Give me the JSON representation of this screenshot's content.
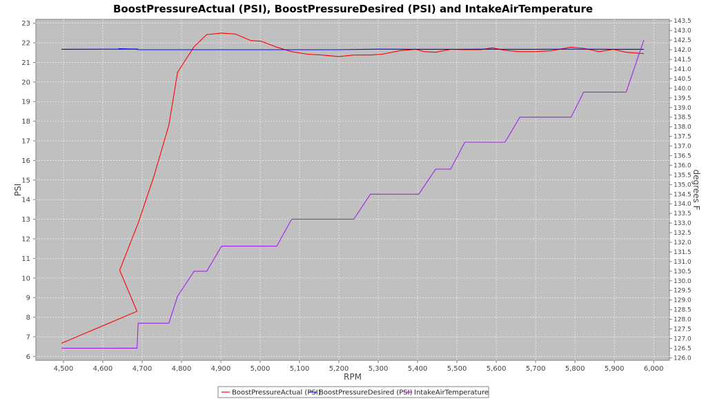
{
  "chart_data": {
    "type": "line",
    "title": "BoostPressureActual (PSI), BoostPressureDesired (PSI) and IntakeAirTemperature",
    "xlabel": "RPM",
    "ylabel": "PSI",
    "y2label": "degrees F",
    "xlim": [
      4430,
      6040
    ],
    "ylim": [
      5.8,
      23.2
    ],
    "y2lim": [
      125.87,
      143.58
    ],
    "x_ticks": [
      "4,500",
      "4,600",
      "4,700",
      "4,800",
      "4,900",
      "5,000",
      "5,100",
      "5,200",
      "5,300",
      "5,400",
      "5,500",
      "5,600",
      "5,700",
      "5,800",
      "5,900",
      "6,000"
    ],
    "y_ticks": [
      "6",
      "7",
      "8",
      "9",
      "10",
      "11",
      "12",
      "13",
      "14",
      "15",
      "16",
      "17",
      "18",
      "19",
      "20",
      "21",
      "22",
      "23"
    ],
    "y2_ticks": [
      "126.0",
      "126.5",
      "127.0",
      "127.5",
      "128.0",
      "128.5",
      "129.0",
      "129.5",
      "130.0",
      "130.5",
      "131.0",
      "131.5",
      "132.0",
      "132.5",
      "133.0",
      "133.5",
      "134.0",
      "134.5",
      "135.0",
      "135.5",
      "136.0",
      "136.5",
      "137.0",
      "137.5",
      "138.0",
      "138.5",
      "139.0",
      "139.5",
      "140.0",
      "140.5",
      "141.0",
      "141.5",
      "142.0",
      "142.5",
      "143.0",
      "143.5"
    ],
    "grid": true,
    "legend_position": "bottom",
    "series": [
      {
        "name": "BoostPressureActual (PSI)",
        "color": "#ff0000",
        "axis": "left",
        "x": [
          4495,
          4687,
          4643,
          4690,
          4730,
          4768,
          4790,
          4832,
          4864,
          4902,
          4937,
          4976,
          5003,
          5042,
          5080,
          5120,
          5157,
          5200,
          5238,
          5280,
          5310,
          5355,
          5395,
          5417,
          5446,
          5484,
          5520,
          5560,
          5590,
          5622,
          5660,
          5700,
          5740,
          5790,
          5822,
          5862,
          5897,
          5930,
          5975
        ],
        "y": [
          6.67,
          8.3,
          10.4,
          12.8,
          15.2,
          17.8,
          20.5,
          21.8,
          22.42,
          22.5,
          22.45,
          22.12,
          22.08,
          21.78,
          21.55,
          21.42,
          21.38,
          21.3,
          21.38,
          21.38,
          21.42,
          21.6,
          21.67,
          21.55,
          21.52,
          21.67,
          21.65,
          21.65,
          21.75,
          21.62,
          21.55,
          21.55,
          21.6,
          21.78,
          21.72,
          21.55,
          21.67,
          21.52,
          21.45
        ]
      },
      {
        "name": "BoostPressureDesired (PSI)",
        "color": "#0000ff",
        "axis": "left",
        "x": [
          4495,
          4640,
          4687,
          4690,
          4800,
          5000,
          5200,
          5300,
          5400,
          5500,
          5590,
          5600,
          5700,
          5800,
          5900,
          5975
        ],
        "y": [
          21.67,
          21.68,
          21.68,
          21.65,
          21.65,
          21.65,
          21.65,
          21.68,
          21.67,
          21.67,
          21.68,
          21.67,
          21.67,
          21.68,
          21.67,
          21.67
        ],
        "extra_segments": [
          [
            [
              4640,
              21.7
            ],
            [
              4690,
              21.68
            ]
          ]
        ]
      },
      {
        "name": "IntakeAirTemperature",
        "color": "#a020f0",
        "axis": "right",
        "x": [
          4495,
          4643,
          4687,
          4690,
          4768,
          4790,
          4832,
          4864,
          4902,
          5042,
          5080,
          5238,
          5280,
          5403,
          5446,
          5484,
          5520,
          5590,
          5622,
          5660,
          5700,
          5790,
          5822,
          5862,
          5897,
          5930,
          5975
        ],
        "y": [
          126.5,
          126.5,
          126.5,
          127.8,
          127.8,
          129.2,
          130.5,
          130.5,
          131.8,
          131.8,
          133.2,
          133.2,
          134.5,
          134.5,
          135.8,
          135.8,
          137.2,
          137.2,
          137.2,
          138.5,
          138.5,
          138.5,
          139.8,
          139.8,
          139.8,
          139.8,
          142.5
        ],
        "extra_segments": [
          [
            [
              4643,
              126.5
            ],
            [
              4687,
              126.5
            ]
          ]
        ]
      }
    ]
  }
}
